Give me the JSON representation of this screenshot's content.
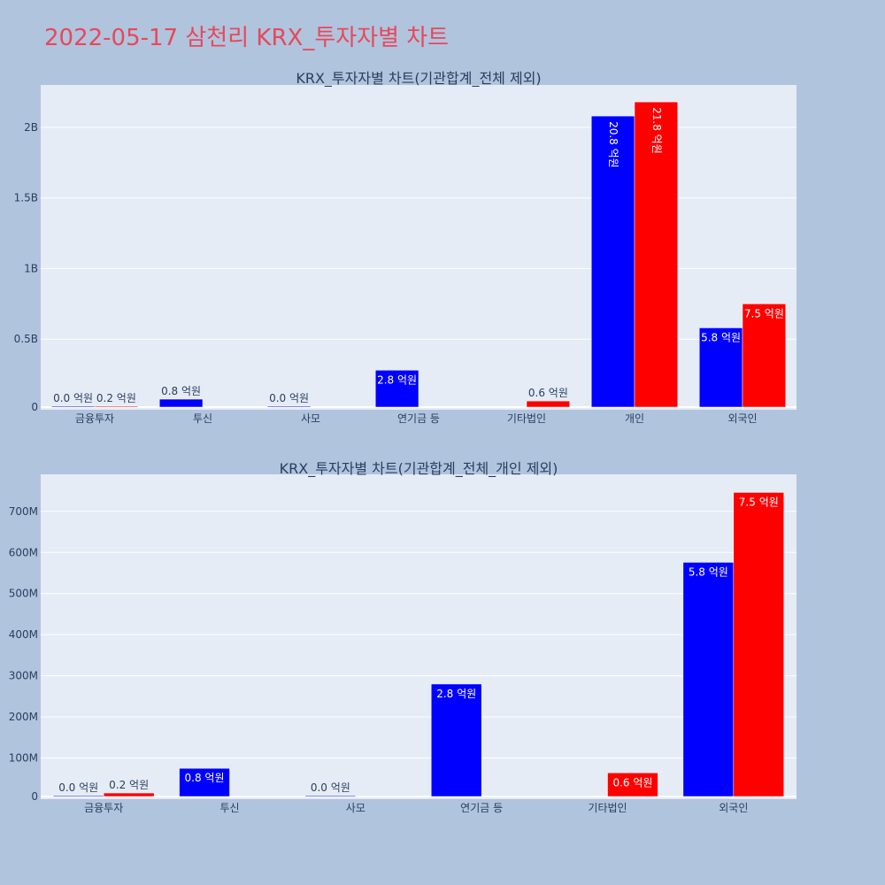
{
  "title": "2022-05-17 삼천리 KRX_투자자별 차트",
  "colors": {
    "buy": "#0000ff",
    "sell": "#ff0000",
    "plot_bg": "#e5ecf6",
    "page_bg": "#b0c4de",
    "title": "#e8485a"
  },
  "chart_data": [
    {
      "type": "bar",
      "title": "KRX_투자자별 차트(기관합계_전체 제외)",
      "categories": [
        "금융투자",
        "투신",
        "사모",
        "연기금 등",
        "기타법인",
        "개인",
        "외국인"
      ],
      "series": [
        {
          "color": "#0000ff",
          "values": [
            1000000,
            75000000,
            1000000,
            280000000,
            null,
            2080000000,
            580000000
          ],
          "labels": [
            "0.0 억원",
            "0.8 억원",
            "0.0 억원",
            "2.8 억원",
            "",
            "20.8 억원",
            "5.8 억원"
          ]
        },
        {
          "color": "#ff0000",
          "values": [
            15000000,
            null,
            null,
            null,
            62000000,
            2180000000,
            750000000
          ],
          "labels": [
            "0.2 억원",
            "",
            "",
            "",
            "0.6 억원",
            "21.8 억원",
            "7.5 억원"
          ]
        }
      ],
      "ylim": [
        0,
        2300000000
      ],
      "yticks": [
        0,
        500000000,
        1000000000,
        1500000000,
        2000000000
      ],
      "ytick_labels": [
        "0",
        "0.5B",
        "1B",
        "1.5B",
        "2B"
      ],
      "grid": true
    },
    {
      "type": "bar",
      "title": "KRX_투자자별 차트(기관합계_전체_개인 제외)",
      "categories": [
        "금융투자",
        "투신",
        "사모",
        "연기금 등",
        "기타법인",
        "외국인"
      ],
      "series": [
        {
          "color": "#0000ff",
          "values": [
            1000000,
            75000000,
            1000000,
            280000000,
            null,
            576000000
          ],
          "labels": [
            "0.0 억원",
            "0.8 억원",
            "0.0 억원",
            "2.8 억원",
            "",
            "5.8 억원"
          ]
        },
        {
          "color": "#ff0000",
          "values": [
            15000000,
            null,
            null,
            null,
            64000000,
            746000000
          ],
          "labels": [
            "0.2 억원",
            "",
            "",
            "",
            "0.6 억원",
            "7.5 억원"
          ]
        }
      ],
      "ylim": [
        0,
        790000000
      ],
      "yticks": [
        0,
        100000000,
        200000000,
        300000000,
        400000000,
        500000000,
        600000000,
        700000000
      ],
      "ytick_labels": [
        "0",
        "100M",
        "200M",
        "300M",
        "400M",
        "500M",
        "600M",
        "700M"
      ],
      "grid": true
    }
  ]
}
